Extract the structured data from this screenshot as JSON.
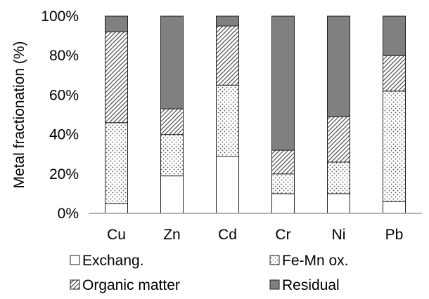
{
  "chart_data": {
    "type": "bar",
    "stacked": true,
    "title": "",
    "xlabel": "",
    "ylabel": "Metal fractionation (%)",
    "ylim": [
      0,
      100
    ],
    "yticks": [
      "0%",
      "20%",
      "40%",
      "60%",
      "80%",
      "100%"
    ],
    "grid": false,
    "legend_position": "bottom",
    "categories": [
      "Cu",
      "Zn",
      "Cd",
      "Cr",
      "Ni",
      "Pb"
    ],
    "series": [
      {
        "name": "Exchang.",
        "pattern": "empty",
        "values": [
          5,
          19,
          29,
          10,
          10,
          6
        ]
      },
      {
        "name": "Fe-Mn ox.",
        "pattern": "dots",
        "values": [
          41,
          21,
          36,
          10,
          16,
          56
        ]
      },
      {
        "name": "Organic matter",
        "pattern": "diagonal",
        "values": [
          46,
          13,
          30,
          12,
          23,
          18
        ]
      },
      {
        "name": "Residual",
        "pattern": "solid",
        "color": "#808080",
        "values": [
          8,
          47,
          5,
          68,
          51,
          20
        ]
      }
    ]
  }
}
